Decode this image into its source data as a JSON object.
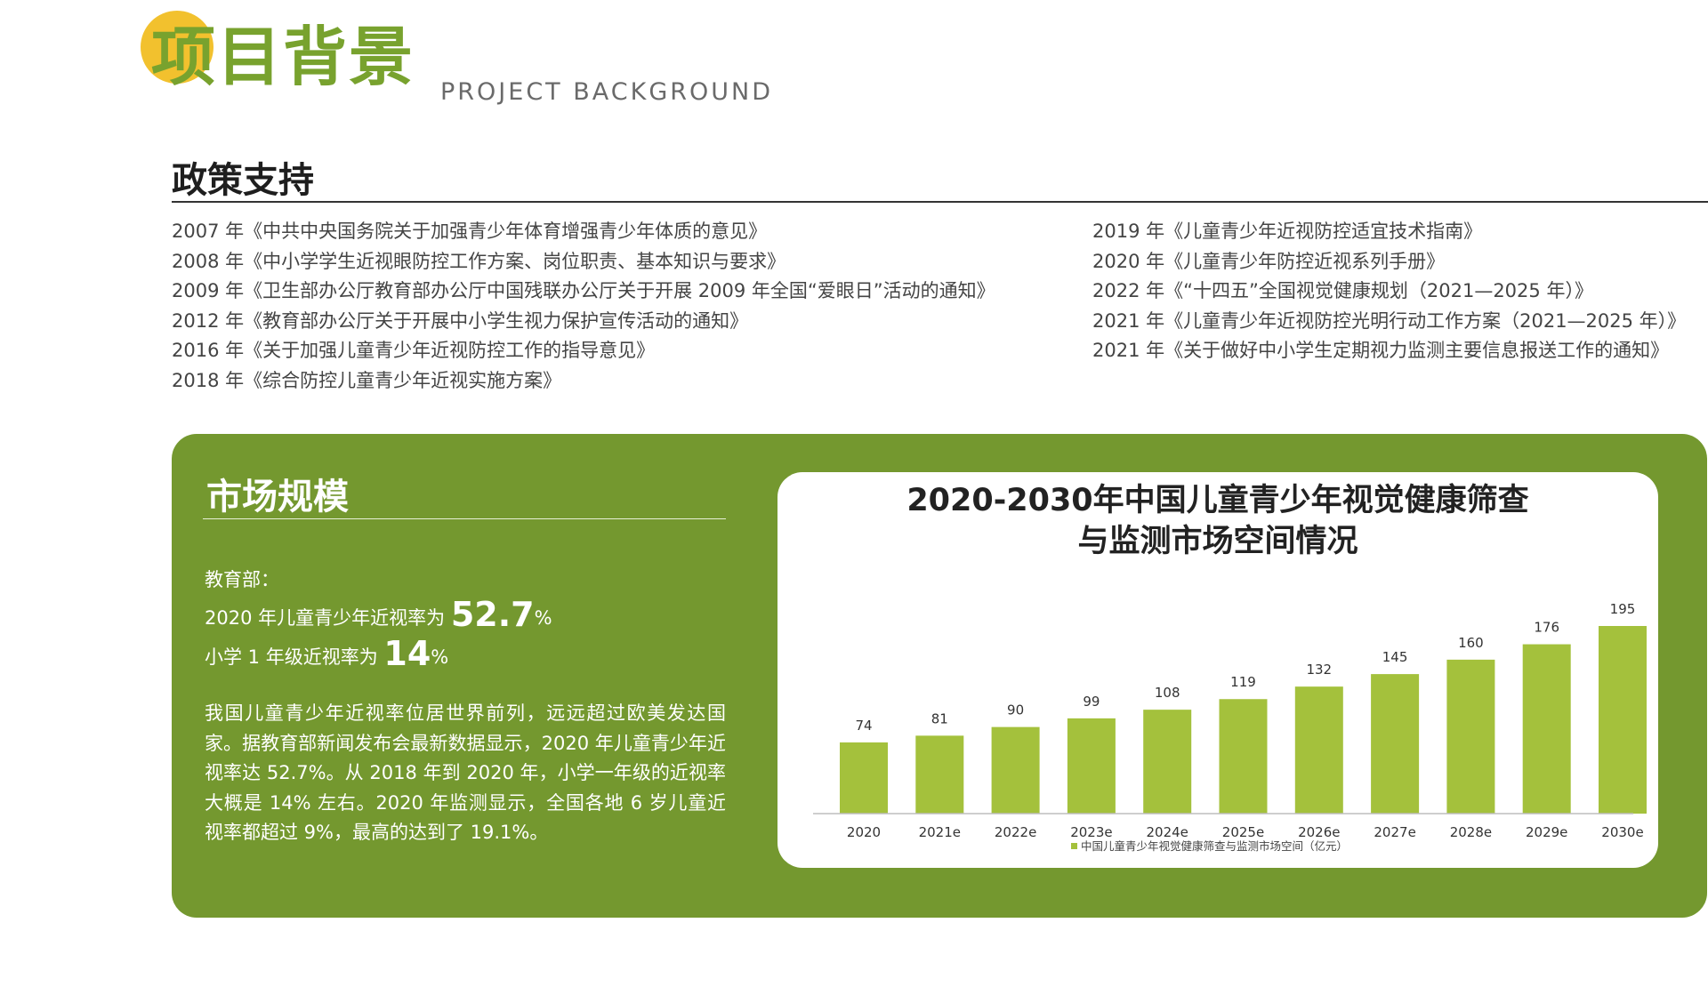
{
  "header": {
    "title": "项目背景",
    "subtitle": "PROJECT BACKGROUND"
  },
  "policy": {
    "title": "政策支持",
    "left_items": [
      "2007 年《中共中央国务院关于加强青少年体育增强青少年体质的意见》",
      "2008 年《中小学学生近视眼防控工作方案、岗位职责、基本知识与要求》",
      "2009 年《卫生部办公厅教育部办公厅中国残联办公厅关于开展 2009 年全国“爱眼日”活动的通知》",
      "2012 年《教育部办公厅关于开展中小学生视力保护宣传活动的通知》",
      "2016 年《关于加强儿童青少年近视防控工作的指导意见》",
      "2018 年《综合防控儿童青少年近视实施方案》"
    ],
    "right_items": [
      "2019 年《儿童青少年近视防控适宜技术指南》",
      "2020 年《儿童青少年防控近视系列手册》",
      "2022 年《“十四五”全国视觉健康规划（2021—2025 年）》",
      "2021 年《儿童青少年近视防控光明行动工作方案（2021—2025 年）》",
      "2021 年《关于做好中小学生定期视力监测主要信息报送工作的通知》"
    ]
  },
  "market": {
    "title": "市场规模",
    "source_label": "教育部：",
    "stat1_prefix": "2020 年儿童青少年近视率为",
    "stat1_value": "52.7",
    "stat1_unit": "%",
    "stat2_prefix": "小学 1 年级近视率为",
    "stat2_value": "14",
    "stat2_unit": "%",
    "paragraph": "我国儿童青少年近视率位居世界前列，远远超过欧美发达国家。据教育部新闻发布会最新数据显示，2020 年儿童青少年近视率达 52.7%。从 2018 年到 2020 年，小学一年级的近视率大概是 14% 左右。2020 年监测显示，全国各地 6 岁儿童近视率都超过 9%，最高的达到了 19.1%。"
  },
  "colors": {
    "brand_green": "#74982f",
    "title_green": "#78a22e",
    "accent_yellow": "#f2c12e",
    "bar_green": "#a4c13c"
  },
  "chart_data": {
    "type": "bar",
    "title_line1": "2020-2030年中国儿童青少年视觉健康筛查",
    "title_line2": "与监测市场空间情况",
    "categories": [
      "2020",
      "2021e",
      "2022e",
      "2023e",
      "2024e",
      "2025e",
      "2026e",
      "2027e",
      "2028e",
      "2029e",
      "2030e"
    ],
    "series": [
      {
        "name": "中国儿童青少年视觉健康筛查与监测市场空间（亿元）",
        "values": [
          74,
          81,
          90,
          99,
          108,
          119,
          132,
          145,
          160,
          176,
          195
        ]
      }
    ],
    "ylim": [
      0,
      195
    ],
    "legend": "bottom",
    "grid": false
  }
}
